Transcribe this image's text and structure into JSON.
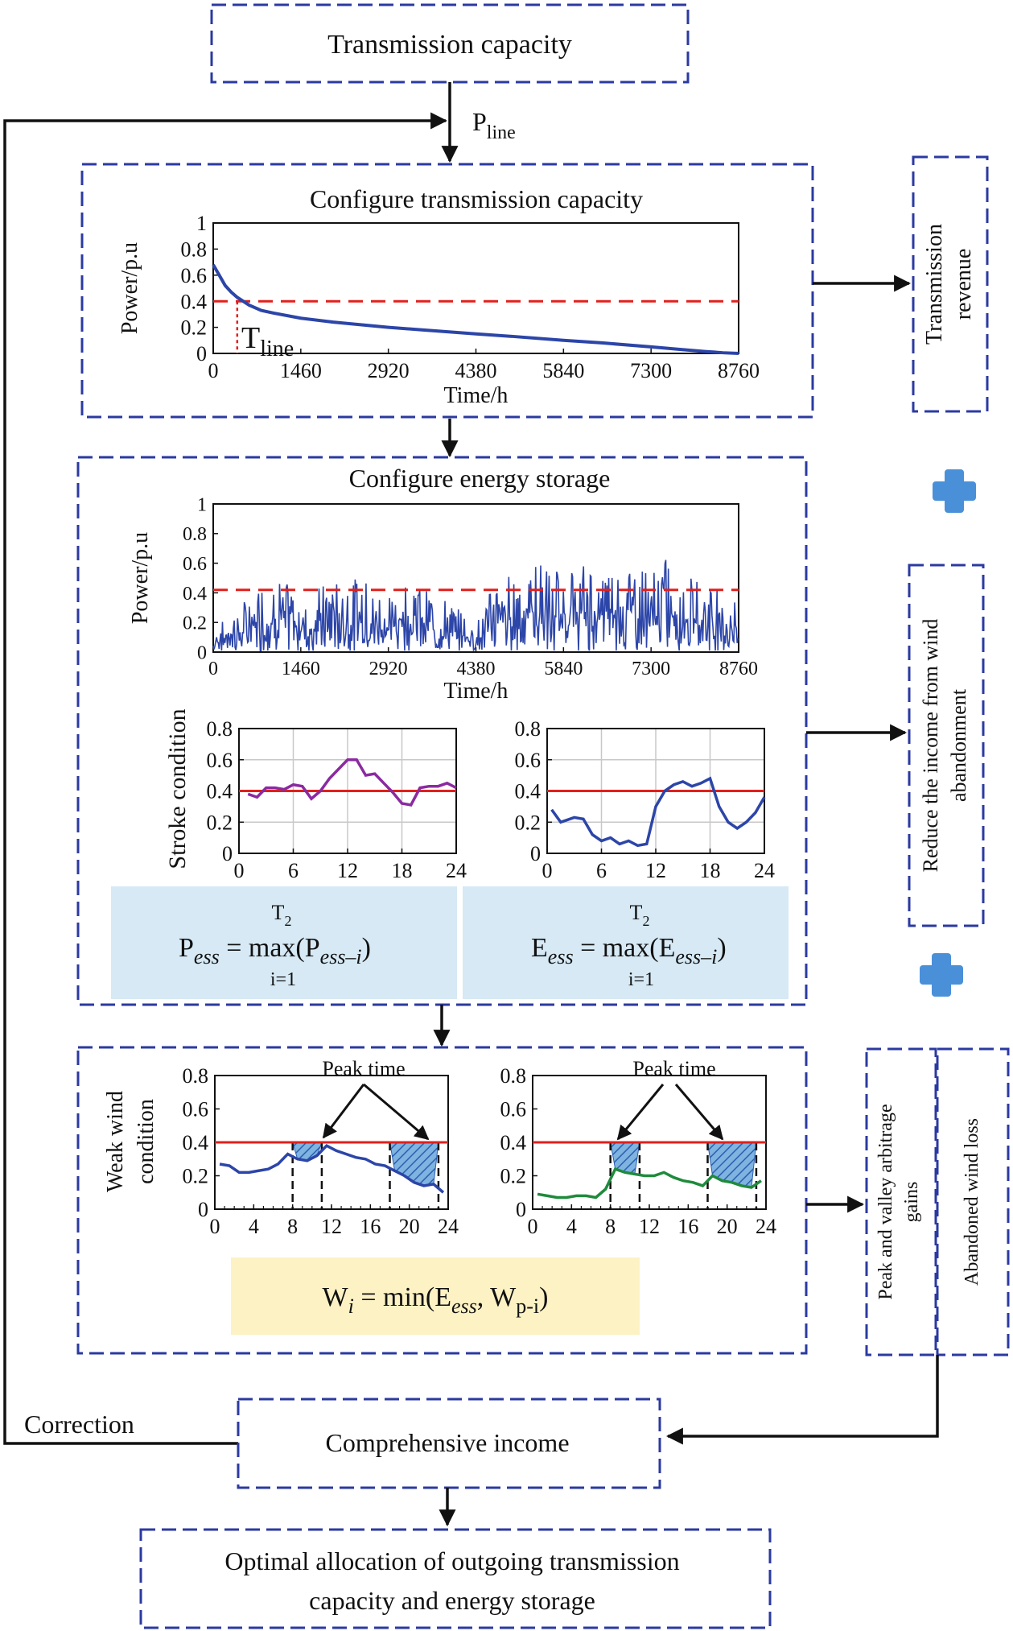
{
  "boxes": {
    "transmission_capacity": "Transmission capacity",
    "configure_transmission": "Configure transmission capacity",
    "configure_storage": "Configure energy storage",
    "comprehensive_income": "Comprehensive income",
    "optimal_line1": "Optimal allocation of outgoing transmission",
    "optimal_line2": "capacity and energy storage"
  },
  "side_boxes": {
    "transmission_revenue_line1": "Transmission",
    "transmission_revenue_line2": "revenue",
    "reduce_income_line1": "Reduce the income from wind",
    "reduce_income_line2": "abandonment",
    "peak_valley_line1": "Peak and valley arbitrage",
    "peak_valley_line2": "gains",
    "abandoned_wind_loss": "Abandoned wind loss"
  },
  "labels": {
    "p_line_main": "P",
    "p_line_sub": "line",
    "t_line_main": "T",
    "t_line_sub": "line",
    "correction": "Correction",
    "stroke_condition": "Stroke condition",
    "weak_wind_line1": "Weak wind",
    "weak_wind_line2": "condition",
    "peak_time_left": "Peak time",
    "peak_time_right": "Peak time"
  },
  "formulas": {
    "pess": {
      "sup": "T",
      "sup_sub": "2",
      "lhs": "P",
      "lhs_sub": "ess",
      "eq": " = max(P",
      "arg_sub": "ess–i",
      "close": ")",
      "below": "i=1"
    },
    "eess": {
      "sup": "T",
      "sup_sub": "2",
      "lhs": "E",
      "lhs_sub": "ess",
      "eq": " = max(E",
      "arg_sub": "ess–i",
      "close": ")",
      "below": "i=1"
    },
    "wi": {
      "lhs": "W",
      "lhs_sub": "i",
      "eq": " = min(E",
      "e_sub": "ess",
      "comma": ", W",
      "w_sub": "p-i",
      "close": ")"
    }
  },
  "colors": {
    "dashed_box": "#2b3aa0",
    "curve": "#2c45a8",
    "threshold": "#e0201c",
    "purple": "#8b2aa0",
    "green": "#1f8a3c",
    "formula_blue_bg": "#d6e9f5",
    "formula_yellow_bg": "#fcf2c4",
    "plus_icon": "#4a90d9"
  },
  "icons": [
    "plus-icon",
    "plus-icon",
    "arrow-icon"
  ],
  "chart_data": [
    {
      "id": "duration_curve",
      "type": "line",
      "xlabel": "Time/h",
      "ylabel": "Power/p.u",
      "xlim": [
        0,
        8760
      ],
      "ylim": [
        0,
        1
      ],
      "xticks": [
        0,
        1460,
        2920,
        4380,
        5840,
        7300,
        8760
      ],
      "yticks": [
        0,
        0.2,
        0.4,
        0.6,
        0.8,
        1
      ],
      "threshold": 0.4,
      "t_line": 400,
      "x": [
        0,
        100,
        200,
        300,
        400,
        600,
        800,
        1000,
        1460,
        2000,
        2920,
        3500,
        4380,
        5000,
        5840,
        6500,
        7300,
        7800,
        8200,
        8500,
        8760
      ],
      "y": [
        0.68,
        0.6,
        0.52,
        0.47,
        0.43,
        0.37,
        0.33,
        0.31,
        0.27,
        0.24,
        0.2,
        0.18,
        0.15,
        0.13,
        0.1,
        0.08,
        0.05,
        0.03,
        0.015,
        0.005,
        0.0
      ]
    },
    {
      "id": "annual_power",
      "type": "line",
      "xlabel": "Time/h",
      "ylabel": "Power/p.u",
      "xlim": [
        0,
        8760
      ],
      "ylim": [
        0,
        1
      ],
      "xticks": [
        0,
        1460,
        2920,
        4380,
        5840,
        7300,
        8760
      ],
      "yticks": [
        0,
        0.2,
        0.4,
        0.6,
        0.8,
        1
      ],
      "threshold": 0.42,
      "envelope": {
        "x": [
          0,
          400,
          800,
          1000,
          1460,
          1800,
          2200,
          2600,
          2920,
          3300,
          3600,
          3900,
          4380,
          4700,
          5000,
          5400,
          5840,
          6200,
          6500,
          6800,
          7300,
          7600,
          7900,
          8200,
          8500,
          8760
        ],
        "max": [
          0.15,
          0.3,
          0.45,
          0.52,
          0.4,
          0.45,
          0.5,
          0.48,
          0.42,
          0.5,
          0.4,
          0.35,
          0.2,
          0.48,
          0.55,
          0.62,
          0.55,
          0.6,
          0.58,
          0.62,
          0.55,
          0.65,
          0.5,
          0.55,
          0.45,
          0.3
        ]
      }
    },
    {
      "id": "stroke_purple",
      "type": "line",
      "xlim": [
        0,
        24
      ],
      "ylim": [
        0,
        0.8
      ],
      "xticks": [
        0,
        6,
        12,
        18,
        24
      ],
      "yticks": [
        0,
        0.2,
        0.4,
        0.6,
        0.8
      ],
      "threshold": 0.4,
      "x": [
        1,
        2,
        3,
        4,
        5,
        6,
        7,
        8,
        9,
        10,
        11,
        12,
        13,
        14,
        15,
        16,
        17,
        18,
        19,
        20,
        21,
        22,
        23,
        24
      ],
      "y": [
        0.38,
        0.36,
        0.42,
        0.42,
        0.41,
        0.44,
        0.43,
        0.35,
        0.4,
        0.48,
        0.54,
        0.6,
        0.6,
        0.5,
        0.51,
        0.45,
        0.39,
        0.32,
        0.31,
        0.42,
        0.43,
        0.43,
        0.45,
        0.42
      ]
    },
    {
      "id": "stroke_blue",
      "type": "line",
      "xlim": [
        0,
        24
      ],
      "ylim": [
        0,
        0.8
      ],
      "xticks": [
        0,
        6,
        12,
        18,
        24
      ],
      "yticks": [
        0,
        0.2,
        0.4,
        0.6,
        0.8
      ],
      "threshold": 0.4,
      "x": [
        0.5,
        1.5,
        3,
        4,
        5,
        6,
        7,
        8,
        9,
        10,
        11,
        12,
        13,
        14,
        15,
        16,
        17,
        18,
        19,
        20,
        21,
        22,
        23,
        24
      ],
      "y": [
        0.28,
        0.2,
        0.23,
        0.22,
        0.12,
        0.08,
        0.1,
        0.06,
        0.08,
        0.05,
        0.06,
        0.3,
        0.4,
        0.44,
        0.46,
        0.43,
        0.45,
        0.48,
        0.3,
        0.2,
        0.16,
        0.2,
        0.26,
        0.36
      ]
    },
    {
      "id": "weak_wind_blue",
      "type": "area",
      "xlim": [
        0,
        24
      ],
      "ylim": [
        0,
        0.8
      ],
      "xticks": [
        0,
        4,
        8,
        12,
        16,
        20,
        24
      ],
      "yticks": [
        0,
        0.2,
        0.4,
        0.6,
        0.8
      ],
      "threshold": 0.4,
      "peak_windows": [
        [
          8,
          11
        ],
        [
          18,
          23
        ]
      ],
      "x": [
        0.5,
        1.5,
        2.5,
        3.5,
        4.5,
        5.5,
        6.5,
        7.5,
        8.5,
        9.5,
        10.5,
        11.5,
        12.5,
        13.5,
        14.5,
        15.5,
        16.5,
        17.5,
        18.5,
        19.5,
        20.5,
        21.5,
        22.5,
        23.5
      ],
      "y": [
        0.27,
        0.26,
        0.22,
        0.22,
        0.23,
        0.24,
        0.27,
        0.33,
        0.3,
        0.29,
        0.32,
        0.38,
        0.35,
        0.33,
        0.31,
        0.3,
        0.27,
        0.26,
        0.23,
        0.2,
        0.16,
        0.14,
        0.15,
        0.1
      ]
    },
    {
      "id": "weak_wind_green",
      "type": "area",
      "xlim": [
        0,
        24
      ],
      "ylim": [
        0,
        0.8
      ],
      "xticks": [
        0,
        4,
        8,
        12,
        16,
        20,
        24
      ],
      "yticks": [
        0,
        0.2,
        0.4,
        0.6,
        0.8
      ],
      "threshold": 0.4,
      "peak_windows": [
        [
          8,
          11
        ],
        [
          18,
          23
        ]
      ],
      "x": [
        0.5,
        1.5,
        2.5,
        3.5,
        4.5,
        5.5,
        6.5,
        7.5,
        8.5,
        9.5,
        10.5,
        11.5,
        12.5,
        13.5,
        14.5,
        15.5,
        16.5,
        17.5,
        18.5,
        19.5,
        20.5,
        21.5,
        22.5,
        23.5
      ],
      "y": [
        0.09,
        0.08,
        0.07,
        0.07,
        0.08,
        0.08,
        0.07,
        0.12,
        0.24,
        0.22,
        0.21,
        0.2,
        0.2,
        0.22,
        0.19,
        0.17,
        0.16,
        0.14,
        0.2,
        0.17,
        0.16,
        0.14,
        0.13,
        0.17
      ]
    }
  ]
}
